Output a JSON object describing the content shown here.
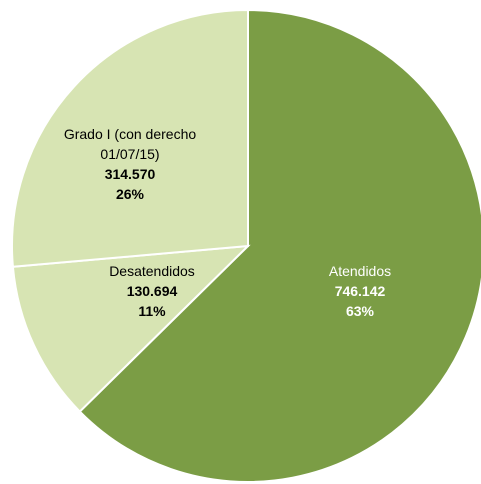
{
  "chart_data": {
    "type": "pie",
    "slices": [
      {
        "label_lines": [
          "Atendidos"
        ],
        "value": 746142,
        "value_label": "746.142",
        "percent_label": "63%",
        "color": "#7b9d45",
        "text_color": "#ffffff"
      },
      {
        "label_lines": [
          "Desatendidos"
        ],
        "value": 130694,
        "value_label": "130.694",
        "percent_label": "11%",
        "color": "#d7e4b3",
        "text_color": "#000000"
      },
      {
        "label_lines": [
          "Grado I (con derecho",
          "01/07/15)"
        ],
        "value": 314570,
        "value_label": "314.570",
        "percent_label": "26%",
        "color": "#d7e4b3",
        "text_color": "#000000"
      }
    ],
    "start_angle_deg": 0,
    "direction": "clockwise",
    "legend": "none"
  }
}
